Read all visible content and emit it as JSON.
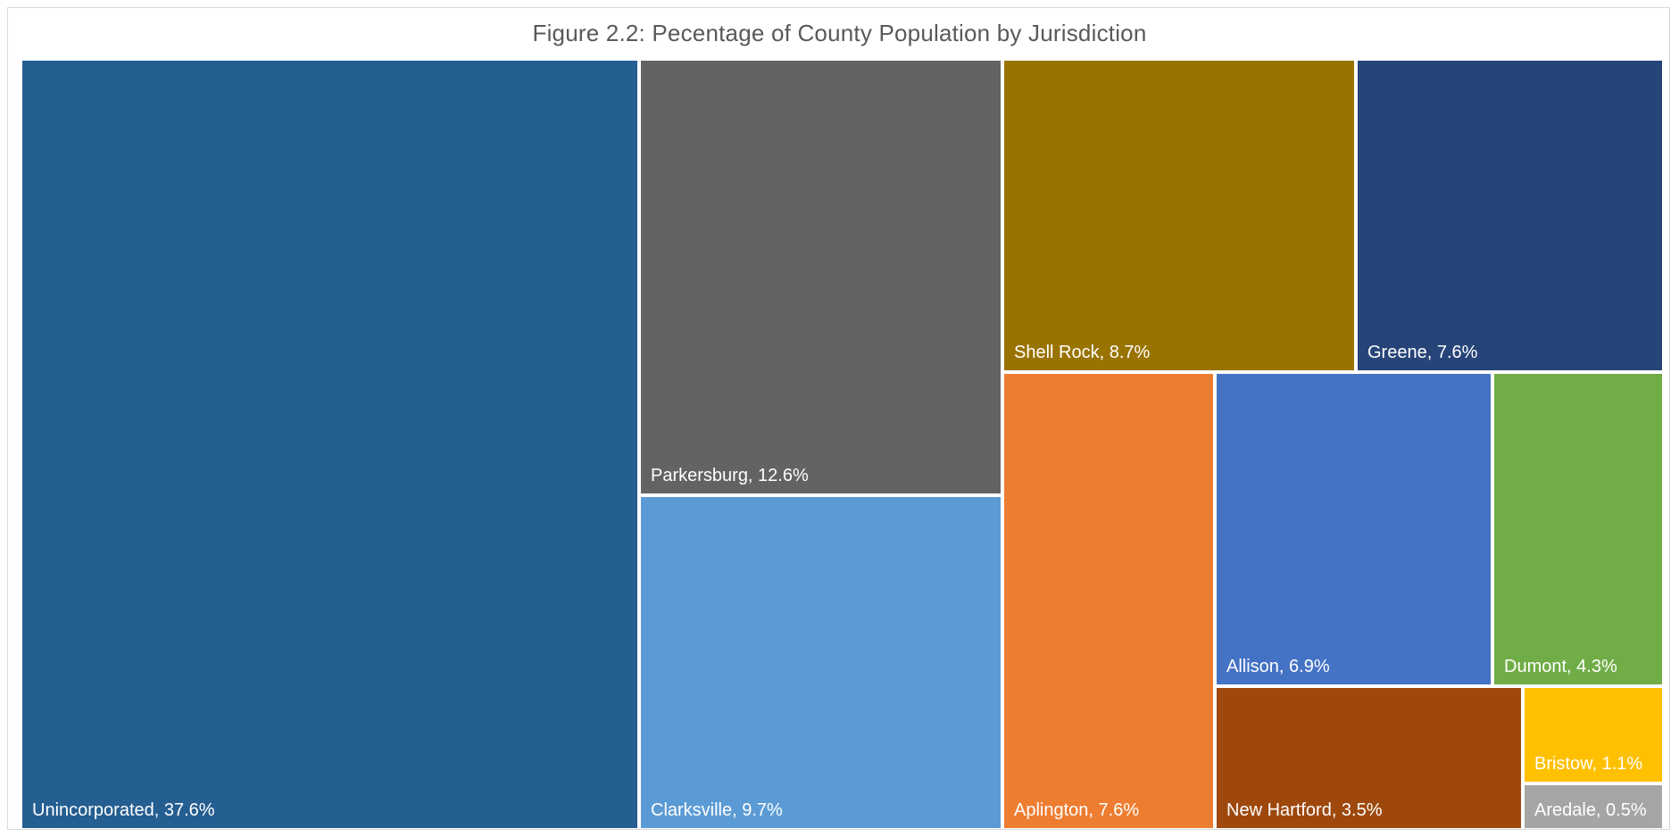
{
  "chart_data": {
    "type": "treemap",
    "title": "Figure 2.2: Pecentage of County Population by Jurisdiction",
    "items": [
      {
        "name": "Unincorporated",
        "label": "Unincorporated, 37.6%",
        "value": 37.6,
        "color": "#255E91"
      },
      {
        "name": "Parkersburg",
        "label": "Parkersburg, 12.6%",
        "value": 12.6,
        "color": "#636363"
      },
      {
        "name": "Clarksville",
        "label": "Clarksville, 9.7%",
        "value": 9.7,
        "color": "#5B9BD5"
      },
      {
        "name": "Shell Rock",
        "label": "Shell Rock, 8.7%",
        "value": 8.7,
        "color": "#997300"
      },
      {
        "name": "Greene",
        "label": "Greene, 7.6%",
        "value": 7.6,
        "color": "#264478"
      },
      {
        "name": "Aplington",
        "label": "Aplington, 7.6%",
        "value": 7.6,
        "color": "#ED7D31"
      },
      {
        "name": "Allison",
        "label": "Allison, 6.9%",
        "value": 6.9,
        "color": "#4472C4"
      },
      {
        "name": "Dumont",
        "label": "Dumont, 4.3%",
        "value": 4.3,
        "color": "#70AD47"
      },
      {
        "name": "New Hartford",
        "label": "New Hartford, 3.5%",
        "value": 3.5,
        "color": "#9E480E"
      },
      {
        "name": "Bristow",
        "label": "Bristow, 1.1%",
        "value": 1.1,
        "color": "#FFC000"
      },
      {
        "name": "Aredale",
        "label": "Aredale, 0.5%",
        "value": 0.5,
        "color": "#A5A5A5"
      }
    ],
    "legend": "none"
  }
}
